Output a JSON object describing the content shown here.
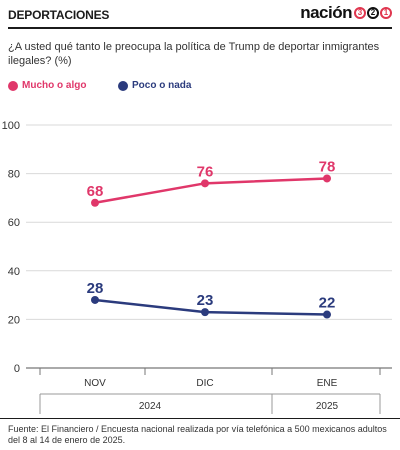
{
  "header": {
    "section": "DEPORTACIONES",
    "brand_word": "nación",
    "brand_digits": [
      "3",
      "2",
      "1"
    ]
  },
  "question": "¿A usted qué tanto le preocupa la política de Trump de deportar inmigrantes ilegales? (%)",
  "source": "Fuente: El Financiero / Encuesta nacional realizada por vía telefónica a 500 mexicanos adultos del 8 al 14 de enero de 2025.",
  "colors": {
    "series_a": "#e0376a",
    "series_b": "#2b3b7d",
    "grid": "#d9d9d9",
    "axis": "#999999",
    "text": "#333333"
  },
  "chart_data": {
    "type": "line",
    "categories": [
      "NOV",
      "DIC",
      "ENE"
    ],
    "years": [
      {
        "label": "2024",
        "span": [
          0,
          1
        ]
      },
      {
        "label": "2025",
        "span": [
          2,
          2
        ]
      }
    ],
    "series": [
      {
        "name": "Mucho o algo",
        "values": [
          68,
          76,
          78
        ]
      },
      {
        "name": "Poco o nada",
        "values": [
          28,
          23,
          22
        ]
      }
    ],
    "yticks": [
      0,
      20,
      40,
      60,
      80,
      100
    ],
    "ylim": [
      0,
      100
    ],
    "grid": true,
    "legend": "top-left"
  }
}
